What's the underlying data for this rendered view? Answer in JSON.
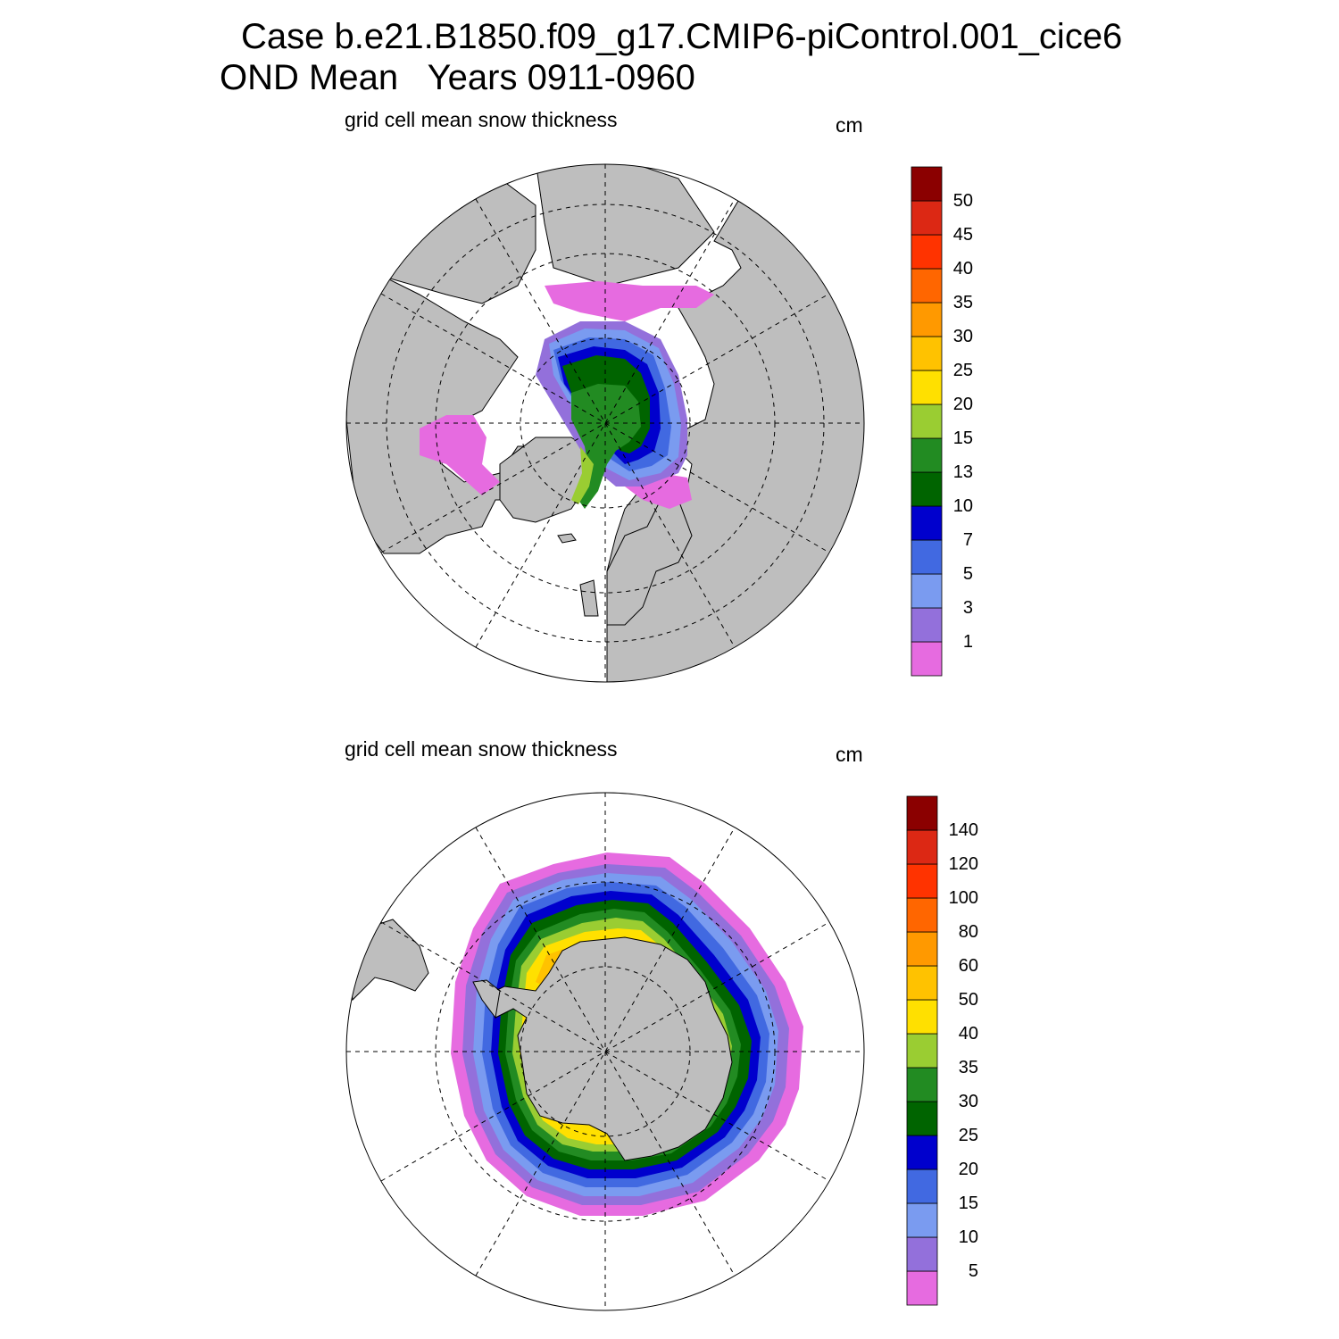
{
  "header": {
    "line1": "Case b.e21.B1850.f09_g17.CMIP6-piControl.001_cice6",
    "line2": "OND Mean   Years 0911-0960"
  },
  "colors": {
    "land": "#bebebe",
    "palette": [
      "#e66be0",
      "#9370db",
      "#7a9bf0",
      "#4169e1",
      "#0000cd",
      "#006400",
      "#228b22",
      "#9acd32",
      "#ffe000",
      "#ffc200",
      "#ff9900",
      "#ff6600",
      "#ff3300",
      "#dc2814",
      "#8b0000"
    ]
  },
  "chart_data": [
    {
      "type": "heatmap",
      "projection": "north polar stereographic",
      "hemisphere": "north",
      "title": "grid cell mean snow thickness",
      "units": "cm",
      "colorbar_levels": [
        "1",
        "3",
        "5",
        "7",
        "10",
        "13",
        "15",
        "20",
        "25",
        "30",
        "35",
        "40",
        "45",
        "50"
      ],
      "field_bands_visible": [
        "<1",
        "1-3",
        "3-5",
        "5-7",
        "7-10",
        "10-13",
        "13-15",
        "15-20"
      ],
      "max_shaded_band": "15-20"
    },
    {
      "type": "heatmap",
      "projection": "south polar stereographic",
      "hemisphere": "south",
      "title": "grid cell mean snow thickness",
      "units": "cm",
      "colorbar_levels": [
        "5",
        "10",
        "15",
        "20",
        "25",
        "30",
        "35",
        "40",
        "50",
        "60",
        "80",
        "100",
        "120",
        "140"
      ],
      "field_bands_visible": [
        "<5",
        "5-10",
        "10-15",
        "15-20",
        "20-25",
        "25-30",
        "30-35",
        "35-40",
        "40-50",
        "50-60"
      ],
      "max_shaded_band": "50-60"
    }
  ]
}
